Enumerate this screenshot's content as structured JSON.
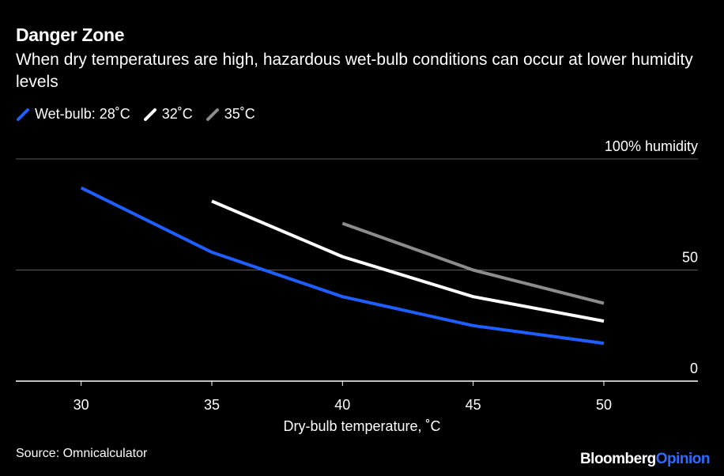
{
  "title": "Danger Zone",
  "subtitle": "When dry temperatures are high, hazardous wet-bulb conditions can occur at lower humidity levels",
  "legend": [
    {
      "label": "Wet-bulb: 28˚C",
      "color": "#1f5fff"
    },
    {
      "label": "32˚C",
      "color": "#ffffff"
    },
    {
      "label": "35˚C",
      "color": "#8c8c8c"
    }
  ],
  "source": "Source: Omnicalculator",
  "brand": {
    "part1": "Bloomberg",
    "part2": "Opinion"
  },
  "chart_data": {
    "type": "line",
    "xlabel": "Dry-bulb temperature, ˚C",
    "ylabel": "",
    "xlim": [
      27.5,
      53.6
    ],
    "ylim": [
      0,
      100
    ],
    "x_ticks": [
      30,
      35,
      40,
      45,
      50
    ],
    "y_ticks": [
      0,
      50,
      100
    ],
    "y_tick_labels": [
      "0",
      "50",
      "100% humidity"
    ],
    "grid": true,
    "legend_position": "top-left",
    "series": [
      {
        "name": "Wet-bulb: 28˚C",
        "color": "#1f5fff",
        "points": [
          [
            30,
            87
          ],
          [
            35,
            58
          ],
          [
            40,
            38
          ],
          [
            45,
            25
          ],
          [
            50,
            17
          ]
        ]
      },
      {
        "name": "32˚C",
        "color": "#ffffff",
        "points": [
          [
            35,
            81
          ],
          [
            40,
            56
          ],
          [
            45,
            38
          ],
          [
            50,
            27
          ]
        ]
      },
      {
        "name": "35˚C",
        "color": "#8c8c8c",
        "points": [
          [
            40,
            71
          ],
          [
            45,
            50
          ],
          [
            50,
            35
          ]
        ]
      }
    ]
  }
}
